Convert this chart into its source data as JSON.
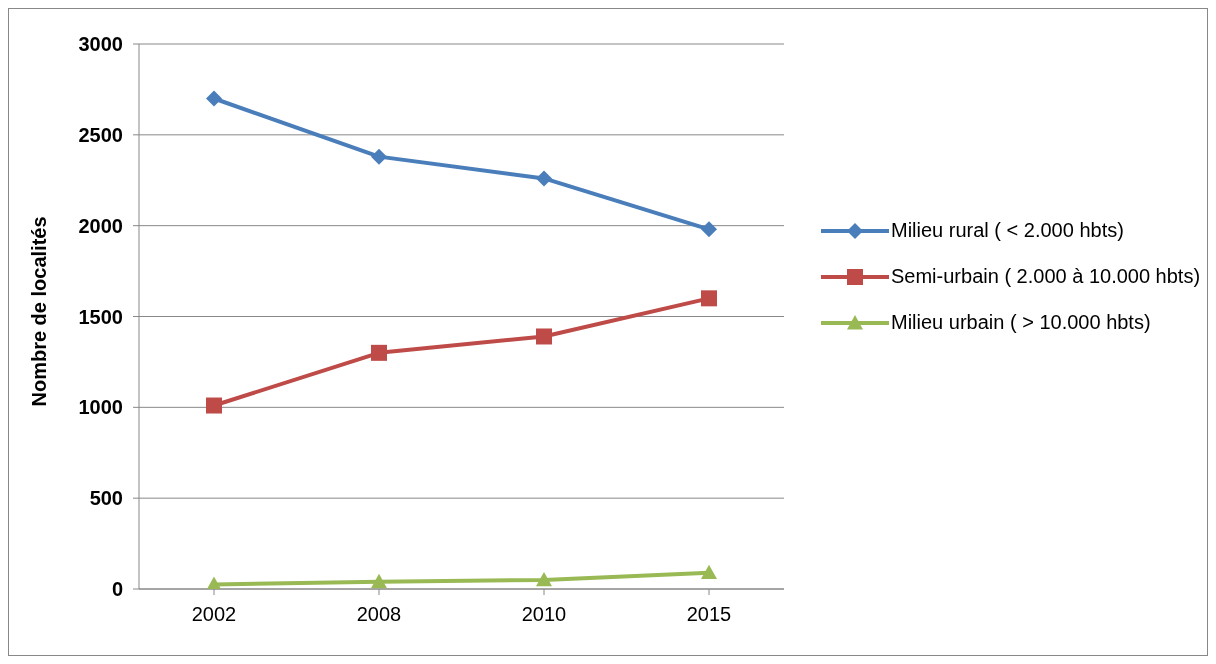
{
  "chart_data": {
    "type": "line",
    "ylabel": "Nombre de localités",
    "categories": [
      "2002",
      "2008",
      "2010",
      "2015"
    ],
    "series": [
      {
        "name": "Milieu rural ( < 2.000 hbts)",
        "color": "#4a7ebb",
        "marker": "diamond",
        "values": [
          2700,
          2380,
          2260,
          1980
        ]
      },
      {
        "name": "Semi-urbain ( 2.000 à 10.000 hbts)",
        "color": "#be4b48",
        "marker": "square",
        "values": [
          1010,
          1300,
          1390,
          1600
        ]
      },
      {
        "name": "Milieu urbain ( > 10.000 hbts)",
        "color": "#98b954",
        "marker": "triangle",
        "values": [
          25,
          40,
          50,
          90
        ]
      }
    ],
    "ylim": [
      0,
      3000
    ],
    "yticks": [
      0,
      500,
      1000,
      1500,
      2000,
      2500,
      3000
    ],
    "grid": "y",
    "legend": "right",
    "line_style": "solid"
  }
}
